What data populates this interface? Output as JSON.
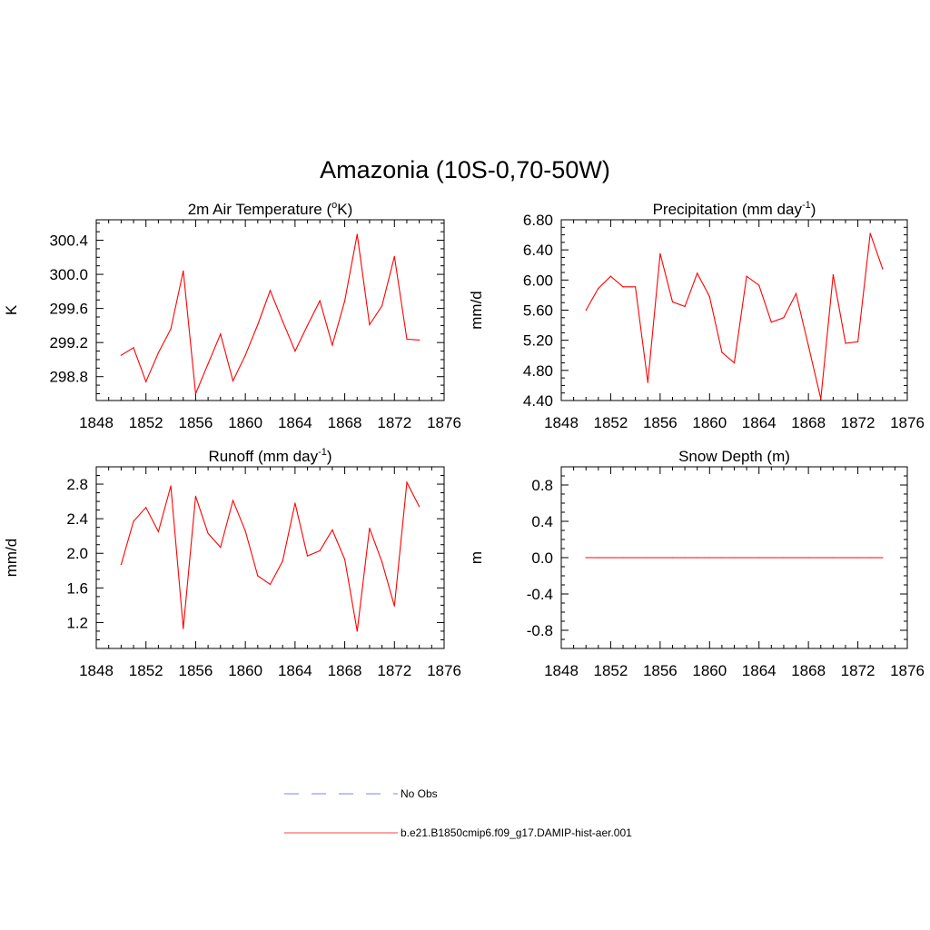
{
  "figure": {
    "title": "Amazonia (10S-0,70-50W)",
    "legend": [
      {
        "label": "No Obs",
        "color": "#aaaaff",
        "style": "dashed"
      },
      {
        "label": "b.e21.B1850cmip6.f09_g17.DAMIP-hist-aer.001",
        "color": "#ff8080",
        "style": "solid"
      }
    ]
  },
  "chart_data": [
    {
      "type": "line",
      "title": "2m Air Temperature (",
      "title_sup": "o",
      "title_tail": "K)",
      "ylabel": "K",
      "xlim": [
        1848,
        1876
      ],
      "ylim": [
        298.52,
        300.64
      ],
      "xticks": [
        "1848",
        "1852",
        "1856",
        "1860",
        "1864",
        "1868",
        "1872",
        "1876"
      ],
      "yticks": [
        "298.8",
        "299.2",
        "299.6",
        "300.0",
        "300.4"
      ],
      "line_color": "#ff0000",
      "x": [
        1850,
        1851,
        1852,
        1853,
        1854,
        1855,
        1856,
        1857,
        1858,
        1859,
        1860,
        1861,
        1862,
        1863,
        1864,
        1865,
        1866,
        1867,
        1868,
        1869,
        1870,
        1871,
        1872,
        1873,
        1874
      ],
      "values": [
        299.05,
        299.14,
        298.74,
        299.08,
        299.36,
        300.04,
        298.6,
        298.95,
        299.3,
        298.75,
        299.05,
        299.41,
        299.81,
        299.45,
        299.1,
        299.4,
        299.69,
        299.17,
        299.69,
        300.47,
        299.41,
        299.63,
        300.21,
        299.24,
        299.23
      ]
    },
    {
      "type": "line",
      "title": "Precipitation (mm day",
      "title_sup": "-1",
      "title_tail": ")",
      "ylabel": "mm/d",
      "xlim": [
        1848,
        1876
      ],
      "ylim": [
        4.4,
        6.8
      ],
      "xticks": [
        "1848",
        "1852",
        "1856",
        "1860",
        "1864",
        "1868",
        "1872",
        "1876"
      ],
      "yticks": [
        "4.40",
        "4.80",
        "5.20",
        "5.60",
        "6.00",
        "6.40",
        "6.80"
      ],
      "line_color": "#ff0000",
      "x": [
        1850,
        1851,
        1852,
        1853,
        1854,
        1855,
        1856,
        1857,
        1858,
        1859,
        1860,
        1861,
        1862,
        1863,
        1864,
        1865,
        1866,
        1867,
        1868,
        1869,
        1870,
        1871,
        1872,
        1873,
        1874
      ],
      "values": [
        5.6,
        5.89,
        6.05,
        5.91,
        5.91,
        4.64,
        6.35,
        5.71,
        5.65,
        6.09,
        5.78,
        5.04,
        4.9,
        6.05,
        5.93,
        5.44,
        5.5,
        5.82,
        5.13,
        4.42,
        6.07,
        5.16,
        5.18,
        6.62,
        6.15
      ]
    },
    {
      "type": "line",
      "title": "Runoff (mm day",
      "title_sup": "-1",
      "title_tail": ")",
      "ylabel": "mm/d",
      "xlim": [
        1848,
        1876
      ],
      "ylim": [
        0.9,
        3.0
      ],
      "xticks": [
        "1848",
        "1852",
        "1856",
        "1860",
        "1864",
        "1868",
        "1872",
        "1876"
      ],
      "yticks": [
        "1.2",
        "1.6",
        "2.0",
        "2.4",
        "2.8"
      ],
      "line_color": "#ff0000",
      "x": [
        1850,
        1851,
        1852,
        1853,
        1854,
        1855,
        1856,
        1857,
        1858,
        1859,
        1860,
        1861,
        1862,
        1863,
        1864,
        1865,
        1866,
        1867,
        1868,
        1869,
        1870,
        1871,
        1872,
        1873,
        1874
      ],
      "values": [
        1.87,
        2.37,
        2.53,
        2.25,
        2.78,
        1.13,
        2.66,
        2.23,
        2.07,
        2.61,
        2.26,
        1.74,
        1.64,
        1.91,
        2.58,
        1.97,
        2.03,
        2.27,
        1.93,
        1.1,
        2.29,
        1.9,
        1.39,
        2.82,
        2.54
      ]
    },
    {
      "type": "line",
      "title": "Snow Depth (m)",
      "title_sup": "",
      "title_tail": "",
      "ylabel": "m",
      "xlim": [
        1848,
        1876
      ],
      "ylim": [
        -1.0,
        1.0
      ],
      "xticks": [
        "1848",
        "1852",
        "1856",
        "1860",
        "1864",
        "1868",
        "1872",
        "1876"
      ],
      "yticks": [
        "-0.8",
        "-0.4",
        "0.0",
        "0.4",
        "0.8"
      ],
      "line_color": "#ff0000",
      "x": [
        1850,
        1851,
        1852,
        1853,
        1854,
        1855,
        1856,
        1857,
        1858,
        1859,
        1860,
        1861,
        1862,
        1863,
        1864,
        1865,
        1866,
        1867,
        1868,
        1869,
        1870,
        1871,
        1872,
        1873,
        1874
      ],
      "values": [
        0,
        0,
        0,
        0,
        0,
        0,
        0,
        0,
        0,
        0,
        0,
        0,
        0,
        0,
        0,
        0,
        0,
        0,
        0,
        0,
        0,
        0,
        0,
        0,
        0
      ]
    }
  ]
}
